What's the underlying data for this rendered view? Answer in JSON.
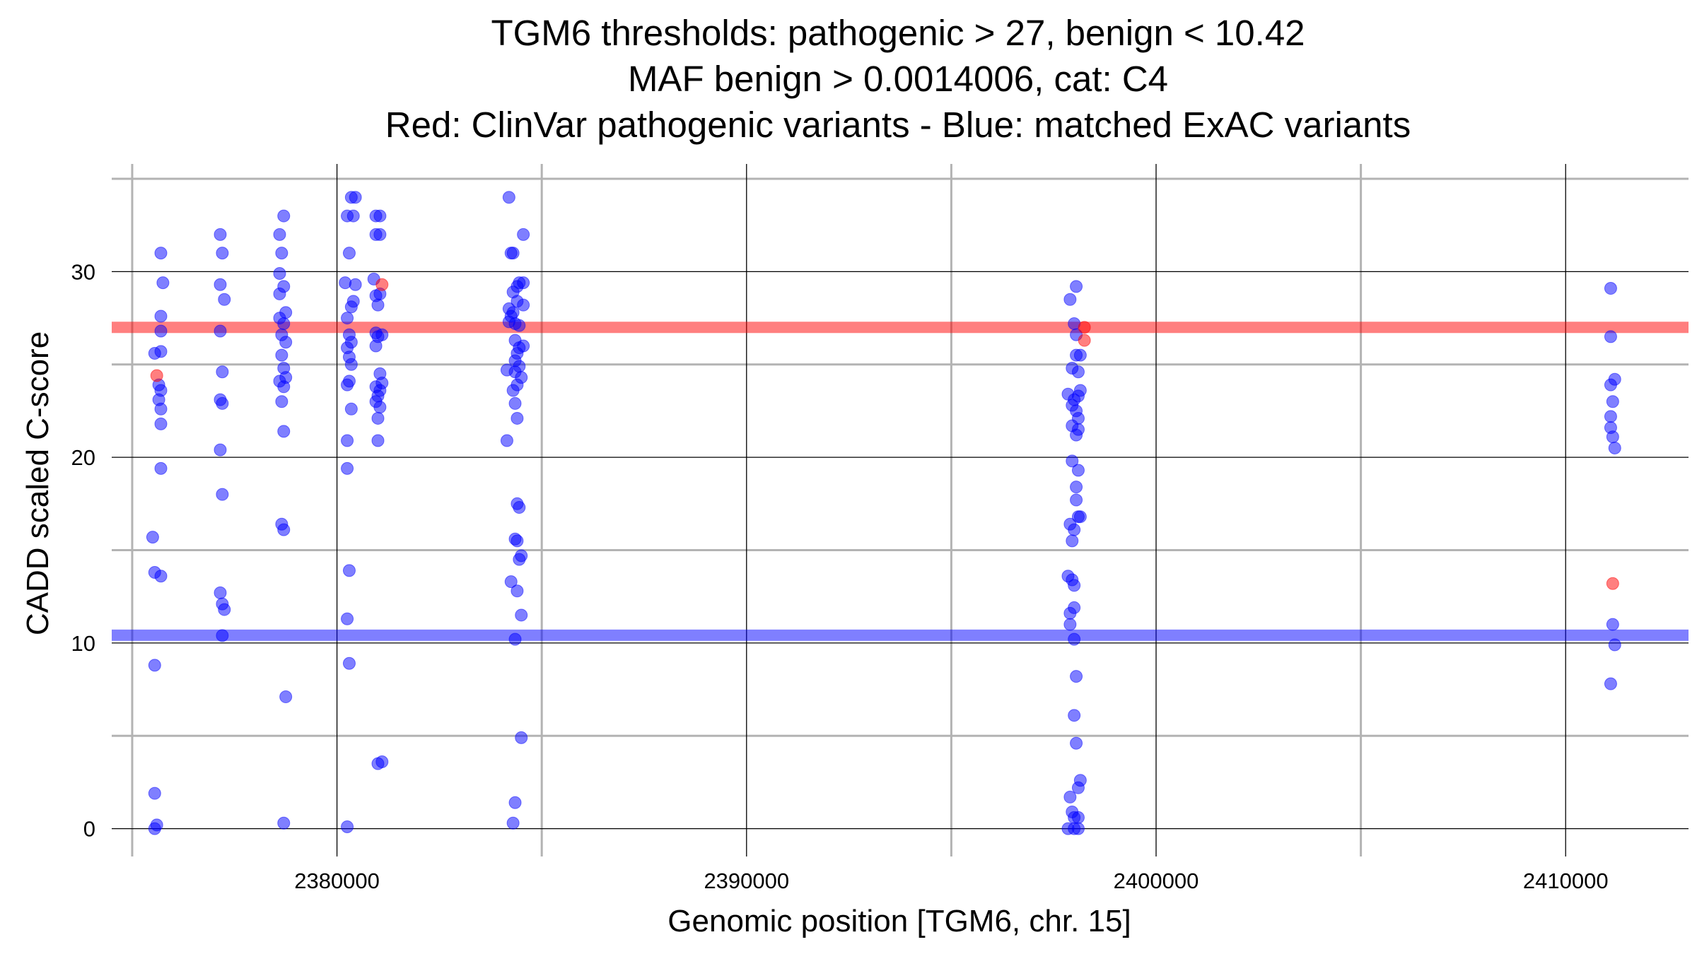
{
  "chart_data": {
    "type": "scatter",
    "title_lines": [
      "TGM6 thresholds: pathogenic > 27, benign < 10.42",
      "MAF benign > 0.0014006, cat: C4",
      "Red: ClinVar pathogenic variants - Blue: matched ExAC variants"
    ],
    "xlabel": "Genomic position [TGM6, chr. 15]",
    "ylabel": "CADD scaled C-score",
    "xlim": [
      2374500,
      2413000
    ],
    "ylim": [
      -1.5,
      35.8
    ],
    "x_ticks": [
      2380000,
      2390000,
      2400000,
      2410000
    ],
    "x_tick_labels": [
      "2380000",
      "2390000",
      "2400000",
      "2410000"
    ],
    "x_minor_ticks": [
      2375000,
      2385000,
      2395000,
      2405000
    ],
    "y_ticks": [
      0,
      10,
      20,
      30
    ],
    "y_tick_labels": [
      "0",
      "10",
      "20",
      "30"
    ],
    "y_minor_ticks": [
      5,
      15,
      25,
      35
    ],
    "grid": true,
    "colors": {
      "pathogenic": "#ff0000",
      "benign": "#0000ff",
      "minor_grid": "#b3b3b3",
      "major_grid": "#000000"
    },
    "thresholds": {
      "pathogenic": 27,
      "benign": 10.42
    },
    "series": [
      {
        "name": "ClinVar pathogenic",
        "color": "#ff0000",
        "points": [
          [
            2375600,
            24.4
          ],
          [
            2381100,
            29.3
          ],
          [
            2398250,
            27.0
          ],
          [
            2398250,
            26.3
          ],
          [
            2411150,
            13.2
          ]
        ]
      },
      {
        "name": "ExAC matched",
        "color": "#0000ff",
        "points": [
          [
            2375700,
            31.0
          ],
          [
            2375750,
            29.4
          ],
          [
            2375700,
            27.6
          ],
          [
            2375700,
            26.8
          ],
          [
            2375550,
            25.6
          ],
          [
            2375700,
            25.7
          ],
          [
            2375650,
            23.9
          ],
          [
            2375700,
            23.6
          ],
          [
            2375650,
            23.1
          ],
          [
            2375700,
            22.6
          ],
          [
            2375700,
            21.8
          ],
          [
            2375700,
            19.4
          ],
          [
            2375500,
            15.7
          ],
          [
            2375550,
            13.8
          ],
          [
            2375700,
            13.6
          ],
          [
            2375550,
            8.8
          ],
          [
            2375550,
            1.9
          ],
          [
            2375600,
            0.2
          ],
          [
            2375550,
            0.0
          ],
          [
            2377150,
            32.0
          ],
          [
            2377200,
            31.0
          ],
          [
            2377150,
            29.3
          ],
          [
            2377250,
            28.5
          ],
          [
            2377150,
            26.8
          ],
          [
            2377200,
            24.6
          ],
          [
            2377150,
            23.1
          ],
          [
            2377200,
            22.9
          ],
          [
            2377150,
            20.4
          ],
          [
            2377200,
            18.0
          ],
          [
            2377150,
            12.7
          ],
          [
            2377200,
            12.1
          ],
          [
            2377250,
            11.8
          ],
          [
            2377200,
            10.4
          ],
          [
            2378700,
            33.0
          ],
          [
            2378600,
            32.0
          ],
          [
            2378650,
            31.0
          ],
          [
            2378600,
            29.9
          ],
          [
            2378700,
            29.2
          ],
          [
            2378600,
            28.8
          ],
          [
            2378750,
            27.8
          ],
          [
            2378600,
            27.5
          ],
          [
            2378700,
            27.2
          ],
          [
            2378650,
            26.6
          ],
          [
            2378750,
            26.2
          ],
          [
            2378650,
            25.5
          ],
          [
            2378700,
            24.8
          ],
          [
            2378750,
            24.3
          ],
          [
            2378600,
            24.1
          ],
          [
            2378700,
            23.8
          ],
          [
            2378650,
            23.0
          ],
          [
            2378700,
            21.4
          ],
          [
            2378650,
            16.4
          ],
          [
            2378700,
            16.1
          ],
          [
            2378750,
            7.1
          ],
          [
            2378700,
            0.3
          ],
          [
            2380250,
            33.0
          ],
          [
            2380350,
            34.0
          ],
          [
            2380450,
            34.0
          ],
          [
            2380400,
            33.0
          ],
          [
            2380300,
            31.0
          ],
          [
            2380200,
            29.4
          ],
          [
            2380450,
            29.3
          ],
          [
            2380400,
            28.4
          ],
          [
            2380350,
            28.1
          ],
          [
            2380250,
            27.5
          ],
          [
            2380300,
            26.6
          ],
          [
            2380350,
            26.2
          ],
          [
            2380250,
            25.9
          ],
          [
            2380300,
            25.4
          ],
          [
            2380350,
            25.0
          ],
          [
            2380300,
            24.1
          ],
          [
            2380250,
            23.9
          ],
          [
            2380350,
            22.6
          ],
          [
            2380250,
            20.9
          ],
          [
            2380250,
            19.4
          ],
          [
            2380300,
            13.9
          ],
          [
            2380250,
            11.3
          ],
          [
            2380300,
            8.9
          ],
          [
            2380250,
            0.1
          ],
          [
            2380950,
            33.0
          ],
          [
            2381050,
            33.0
          ],
          [
            2380950,
            32.0
          ],
          [
            2381050,
            32.0
          ],
          [
            2380900,
            29.6
          ],
          [
            2381050,
            28.8
          ],
          [
            2380950,
            28.7
          ],
          [
            2381000,
            28.2
          ],
          [
            2380950,
            26.7
          ],
          [
            2381100,
            26.6
          ],
          [
            2381000,
            26.5
          ],
          [
            2380950,
            26.0
          ],
          [
            2381050,
            24.5
          ],
          [
            2381100,
            24.0
          ],
          [
            2380950,
            23.8
          ],
          [
            2381050,
            23.6
          ],
          [
            2381000,
            23.3
          ],
          [
            2380950,
            23.0
          ],
          [
            2381050,
            22.7
          ],
          [
            2381000,
            22.1
          ],
          [
            2381000,
            20.9
          ],
          [
            2381000,
            3.5
          ],
          [
            2381100,
            3.6
          ],
          [
            2384200,
            34.0
          ],
          [
            2384550,
            32.0
          ],
          [
            2384250,
            31.0
          ],
          [
            2384300,
            31.0
          ],
          [
            2384450,
            29.4
          ],
          [
            2384550,
            29.4
          ],
          [
            2384400,
            29.2
          ],
          [
            2384300,
            28.9
          ],
          [
            2384400,
            28.4
          ],
          [
            2384550,
            28.2
          ],
          [
            2384200,
            28.0
          ],
          [
            2384300,
            27.8
          ],
          [
            2384250,
            27.6
          ],
          [
            2384200,
            27.3
          ],
          [
            2384350,
            27.2
          ],
          [
            2384450,
            27.1
          ],
          [
            2384350,
            26.3
          ],
          [
            2384550,
            26.0
          ],
          [
            2384450,
            25.9
          ],
          [
            2384400,
            25.6
          ],
          [
            2384350,
            25.2
          ],
          [
            2384450,
            24.9
          ],
          [
            2384150,
            24.7
          ],
          [
            2384350,
            24.6
          ],
          [
            2384500,
            24.3
          ],
          [
            2384400,
            23.9
          ],
          [
            2384300,
            23.6
          ],
          [
            2384350,
            22.9
          ],
          [
            2384400,
            22.1
          ],
          [
            2384150,
            20.9
          ],
          [
            2384400,
            17.5
          ],
          [
            2384450,
            17.3
          ],
          [
            2384350,
            15.6
          ],
          [
            2384400,
            15.5
          ],
          [
            2384500,
            14.7
          ],
          [
            2384450,
            14.5
          ],
          [
            2384250,
            13.3
          ],
          [
            2384400,
            12.8
          ],
          [
            2384500,
            11.5
          ],
          [
            2384350,
            10.2
          ],
          [
            2384500,
            4.9
          ],
          [
            2384350,
            1.4
          ],
          [
            2384300,
            0.3
          ],
          [
            2397900,
            28.5
          ],
          [
            2398050,
            29.2
          ],
          [
            2398000,
            27.2
          ],
          [
            2398050,
            26.6
          ],
          [
            2398050,
            25.5
          ],
          [
            2398150,
            25.5
          ],
          [
            2397950,
            24.8
          ],
          [
            2398100,
            24.6
          ],
          [
            2398150,
            23.6
          ],
          [
            2397850,
            23.4
          ],
          [
            2398000,
            23.1
          ],
          [
            2398100,
            23.3
          ],
          [
            2397950,
            22.8
          ],
          [
            2398050,
            22.5
          ],
          [
            2398100,
            22.1
          ],
          [
            2397950,
            21.7
          ],
          [
            2398100,
            21.5
          ],
          [
            2398050,
            21.2
          ],
          [
            2397950,
            19.8
          ],
          [
            2398100,
            19.3
          ],
          [
            2398050,
            18.4
          ],
          [
            2398050,
            17.7
          ],
          [
            2398100,
            16.8
          ],
          [
            2398150,
            16.8
          ],
          [
            2397900,
            16.4
          ],
          [
            2398000,
            16.1
          ],
          [
            2397950,
            15.5
          ],
          [
            2397850,
            13.6
          ],
          [
            2397950,
            13.4
          ],
          [
            2398000,
            13.1
          ],
          [
            2398000,
            11.9
          ],
          [
            2397900,
            11.6
          ],
          [
            2397900,
            11.0
          ],
          [
            2398000,
            10.2
          ],
          [
            2398050,
            8.2
          ],
          [
            2398000,
            6.1
          ],
          [
            2398050,
            4.6
          ],
          [
            2398150,
            2.6
          ],
          [
            2398100,
            2.2
          ],
          [
            2397900,
            1.7
          ],
          [
            2397950,
            0.9
          ],
          [
            2398000,
            0.6
          ],
          [
            2398100,
            0.6
          ],
          [
            2397850,
            0.0
          ],
          [
            2398000,
            0.0
          ],
          [
            2398100,
            0.0
          ],
          [
            2411100,
            29.1
          ],
          [
            2411100,
            26.5
          ],
          [
            2411200,
            24.2
          ],
          [
            2411100,
            23.9
          ],
          [
            2411150,
            23.0
          ],
          [
            2411100,
            22.2
          ],
          [
            2411100,
            21.6
          ],
          [
            2411150,
            21.1
          ],
          [
            2411200,
            20.5
          ],
          [
            2411150,
            11.0
          ],
          [
            2411200,
            9.9
          ],
          [
            2411100,
            7.8
          ]
        ]
      }
    ]
  }
}
